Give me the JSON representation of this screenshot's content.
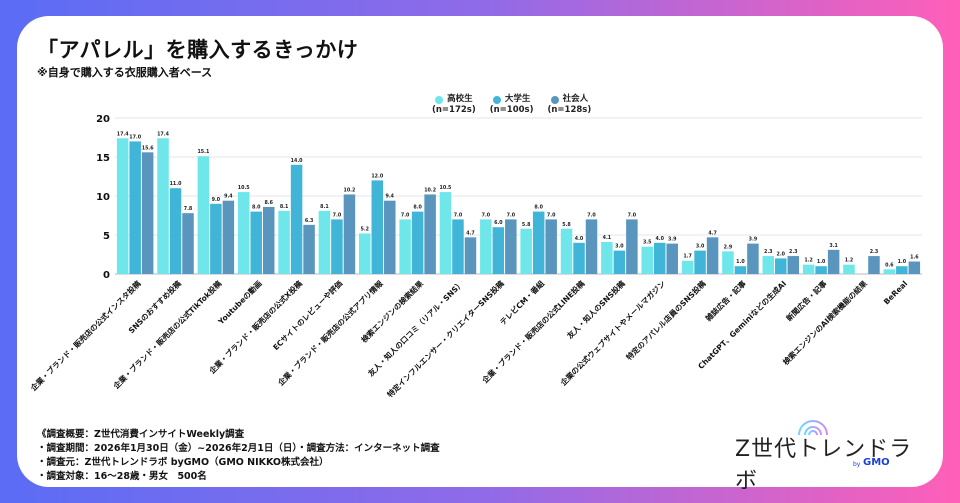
{
  "title": "「アパレル」を購入するきっかけ",
  "subtitle": "※自身で購入する衣服購入者ベース",
  "legend": [
    {
      "name": "高校生",
      "n": "(n=172s)",
      "color": "#6ee6ea"
    },
    {
      "name": "大学生",
      "n": "(n=100s)",
      "color": "#40b5d8"
    },
    {
      "name": "社会人",
      "n": "(n=128s)",
      "color": "#5a95be"
    }
  ],
  "notes": [
    "《調査概要：Z世代消費インサイトWeekly調査",
    "・調査期間：2026年1月30日（金）~2026年2月1日（日）・調査方法：インターネット調査",
    "・調査元：Z世代トレンドラボ byGMO（GMO NIKKO株式会社）",
    "・調査対象：16～28歳・男女　500名"
  ],
  "logo": {
    "text": "Z世代トレンドラボ",
    "by": "by",
    "brand": "GMO"
  },
  "chart_data": {
    "type": "bar",
    "title": "「アパレル」を購入するきっかけ",
    "xlabel": "",
    "ylabel": "",
    "ylim": [
      0,
      20
    ],
    "yticks": [
      0,
      5,
      10,
      15,
      20
    ],
    "grid": true,
    "legend_position": "top-center",
    "categories": [
      "企業・ブランド・販売店の公式インスタ投稿",
      "SNSのおすすめ投稿",
      "企業・ブランド・販売店の公式TikTok投稿",
      "Youtubeの動画",
      "企業・ブランド・販売店の公式X投稿",
      "ECサイトのレビューや評価",
      "企業・ブランド・販売店の公式アプリ情報",
      "検索エンジンの検索結果",
      "友人・知人の口コミ（リアル・SNS）",
      "特定インフルエンサー・クリエイターSNS投稿",
      "テレビCM・番組",
      "企業・ブランド・販売店の公式LINE投稿",
      "友人・知人のSNS投稿",
      "企業の公式ウェブサイトやメールマガジン",
      "特定のアパレル店員のSNS投稿",
      "雑誌広告・記事",
      "ChatGPT、Geminiなどの生成AI",
      "新聞広告・記事",
      "検索エンジンのAI検索機能の結果",
      "BeReal"
    ],
    "series": [
      {
        "name": "高校生",
        "values": [
          17.4,
          17.4,
          15.1,
          10.5,
          8.1,
          8.1,
          5.2,
          7.0,
          10.5,
          7.0,
          5.8,
          5.8,
          4.1,
          3.5,
          1.7,
          2.9,
          2.3,
          1.2,
          1.2,
          0.6
        ]
      },
      {
        "name": "大学生",
        "values": [
          17.0,
          11.0,
          9.0,
          8.0,
          14.0,
          7.0,
          12.0,
          8.0,
          7.0,
          6.0,
          8.0,
          4.0,
          3.0,
          4.0,
          3.0,
          1.0,
          2.0,
          1.0,
          0,
          1.0
        ]
      },
      {
        "name": "社会人",
        "values": [
          15.6,
          7.8,
          9.4,
          8.6,
          6.3,
          10.2,
          9.4,
          10.2,
          4.7,
          7.0,
          7.0,
          7.0,
          7.0,
          3.9,
          4.7,
          3.9,
          2.3,
          3.1,
          2.3,
          1.6
        ]
      }
    ]
  }
}
